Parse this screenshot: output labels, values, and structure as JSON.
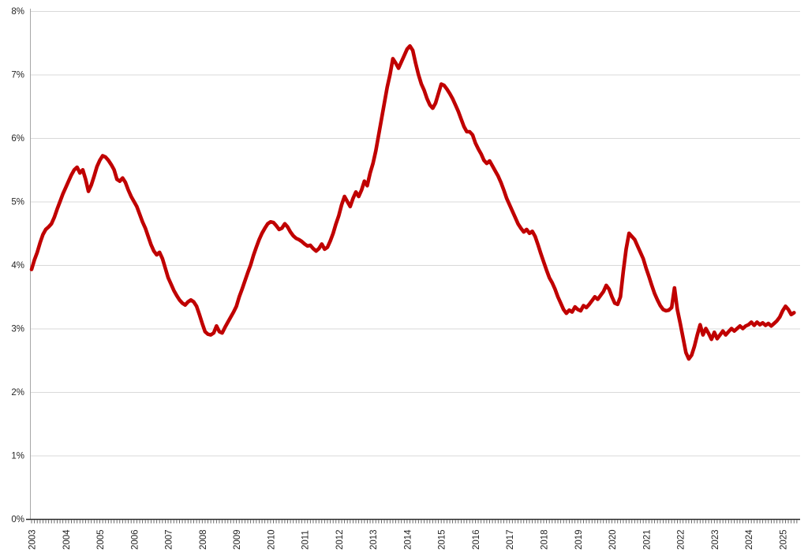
{
  "chart_data": {
    "type": "line",
    "title": "",
    "legend": "none",
    "grid": "horizontal",
    "y_axis": {
      "min": 0,
      "max": 8,
      "tick_labels": [
        "0%",
        "1%",
        "2%",
        "3%",
        "4%",
        "5%",
        "6%",
        "7%",
        "8%"
      ]
    },
    "x_axis": {
      "tick_labels": [
        "2003",
        "2004",
        "2005",
        "2006",
        "2007",
        "2008",
        "2009",
        "2010",
        "2011",
        "2012",
        "2013",
        "2014",
        "2015",
        "2016",
        "2017",
        "2018",
        "2019",
        "2020",
        "2021",
        "2022",
        "2023",
        "2024",
        "2025"
      ],
      "minor_ticks": "monthly",
      "label_rotation_degrees": -90
    },
    "series": [
      {
        "name": "series_1",
        "color": "#C00000",
        "frequency": "monthly",
        "start_label": "2003",
        "unit": "%",
        "values": [
          3.93,
          4.08,
          4.2,
          4.35,
          4.48,
          4.56,
          4.6,
          4.65,
          4.75,
          4.88,
          5.0,
          5.12,
          5.22,
          5.32,
          5.42,
          5.5,
          5.54,
          5.45,
          5.5,
          5.35,
          5.16,
          5.26,
          5.4,
          5.55,
          5.65,
          5.72,
          5.7,
          5.65,
          5.58,
          5.5,
          5.35,
          5.32,
          5.37,
          5.3,
          5.18,
          5.08,
          5.0,
          4.92,
          4.8,
          4.68,
          4.58,
          4.45,
          4.32,
          4.22,
          4.16,
          4.2,
          4.1,
          3.95,
          3.8,
          3.7,
          3.6,
          3.52,
          3.45,
          3.4,
          3.37,
          3.42,
          3.45,
          3.42,
          3.35,
          3.22,
          3.08,
          2.95,
          2.91,
          2.9,
          2.93,
          3.04,
          2.95,
          2.93,
          3.02,
          3.1,
          3.18,
          3.26,
          3.35,
          3.5,
          3.62,
          3.75,
          3.88,
          4.0,
          4.15,
          4.28,
          4.4,
          4.5,
          4.58,
          4.65,
          4.68,
          4.67,
          4.62,
          4.56,
          4.58,
          4.65,
          4.6,
          4.52,
          4.46,
          4.42,
          4.4,
          4.37,
          4.33,
          4.3,
          4.31,
          4.26,
          4.22,
          4.26,
          4.33,
          4.25,
          4.28,
          4.38,
          4.5,
          4.65,
          4.78,
          4.95,
          5.08,
          5.0,
          4.92,
          5.05,
          5.15,
          5.08,
          5.18,
          5.32,
          5.25,
          5.45,
          5.6,
          5.8,
          6.05,
          6.3,
          6.55,
          6.8,
          7.0,
          7.25,
          7.18,
          7.1,
          7.2,
          7.3,
          7.4,
          7.45,
          7.38,
          7.18,
          7.0,
          6.85,
          6.75,
          6.62,
          6.52,
          6.47,
          6.55,
          6.7,
          6.85,
          6.83,
          6.77,
          6.7,
          6.62,
          6.52,
          6.42,
          6.3,
          6.18,
          6.1,
          6.1,
          6.05,
          5.92,
          5.83,
          5.75,
          5.65,
          5.6,
          5.64,
          5.56,
          5.48,
          5.4,
          5.3,
          5.18,
          5.05,
          4.95,
          4.85,
          4.75,
          4.65,
          4.58,
          4.52,
          4.56,
          4.5,
          4.53,
          4.45,
          4.32,
          4.18,
          4.05,
          3.92,
          3.8,
          3.72,
          3.62,
          3.5,
          3.4,
          3.3,
          3.24,
          3.29,
          3.26,
          3.34,
          3.3,
          3.28,
          3.36,
          3.33,
          3.38,
          3.44,
          3.5,
          3.46,
          3.52,
          3.58,
          3.68,
          3.62,
          3.5,
          3.4,
          3.38,
          3.5,
          3.9,
          4.25,
          4.5,
          4.45,
          4.4,
          4.3,
          4.2,
          4.1,
          3.95,
          3.82,
          3.68,
          3.55,
          3.45,
          3.36,
          3.3,
          3.28,
          3.29,
          3.33,
          3.64,
          3.3,
          3.08,
          2.85,
          2.62,
          2.52,
          2.58,
          2.72,
          2.9,
          3.06,
          2.9,
          3.0,
          2.92,
          2.83,
          2.94,
          2.84,
          2.9,
          2.96,
          2.9,
          2.95,
          3.0,
          2.96,
          3.0,
          3.04,
          3.0,
          3.04,
          3.06,
          3.1,
          3.05,
          3.1,
          3.06,
          3.09,
          3.05,
          3.08,
          3.04,
          3.08,
          3.12,
          3.18,
          3.28,
          3.35,
          3.3,
          3.22,
          3.25
        ]
      }
    ]
  },
  "colors": {
    "background": "#FFFFFF",
    "line": "#C00000",
    "gridline": "#D9D9D9",
    "left_axis": "#A6A6A6",
    "bottom_axis": "#262626",
    "tick": "#595959",
    "label_text": "#262626"
  }
}
